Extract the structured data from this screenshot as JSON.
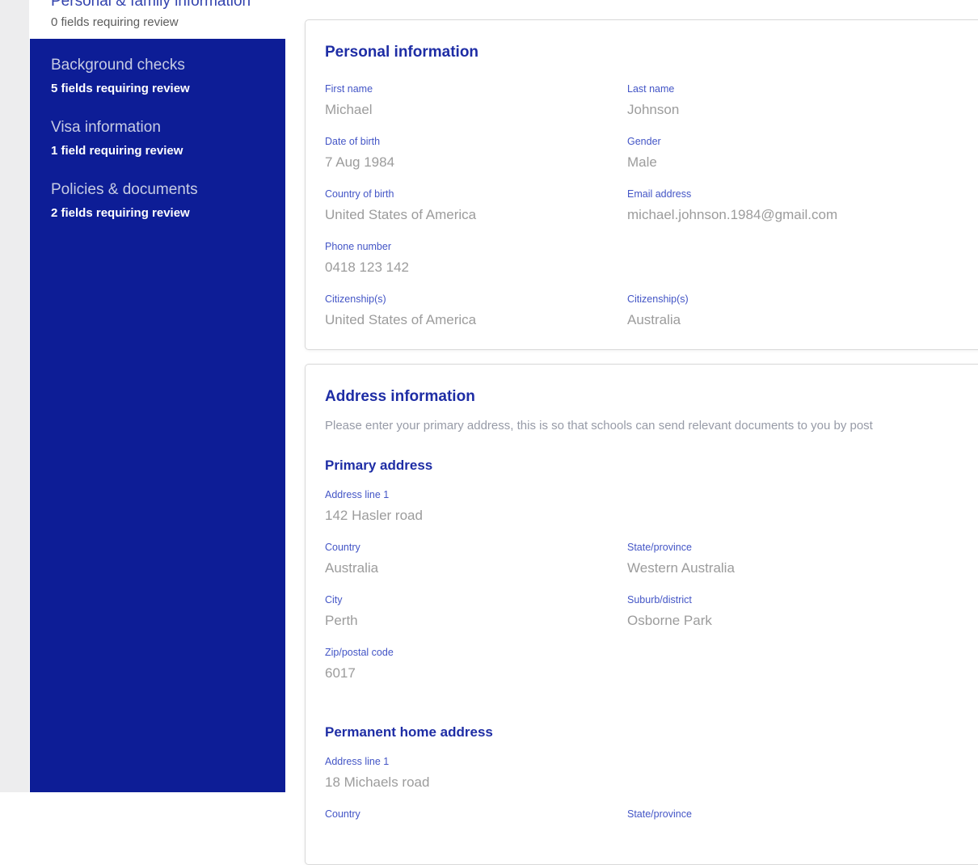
{
  "colors": {
    "sidebar_bg": "#0d1d96",
    "accent_title": "#1e2da5",
    "accent_label": "#4355c6",
    "sidebar_heading": "#c7cce3",
    "value_gray": "#9c9c9c",
    "gutter_gray": "#ededee"
  },
  "sidebar": {
    "top_item": {
      "label": "Personal & family information",
      "status": "0 fields requiring review"
    },
    "items": [
      {
        "label": "Background checks",
        "status": "5 fields requiring review"
      },
      {
        "label": "Visa information",
        "status": "1 field requiring review"
      },
      {
        "label": "Policies & documents",
        "status": "2 fields requiring review"
      }
    ]
  },
  "personal_card": {
    "title": "Personal information",
    "fields": [
      {
        "label": "First name",
        "value": "Michael"
      },
      {
        "label": "Last name",
        "value": "Johnson"
      },
      {
        "label": "Date of birth",
        "value": "7 Aug 1984"
      },
      {
        "label": "Gender",
        "value": "Male"
      },
      {
        "label": "Country of birth",
        "value": "United States of America"
      },
      {
        "label": "Email address",
        "value": "michael.johnson.1984@gmail.com"
      },
      {
        "label": "Phone number",
        "value": "0418 123 142"
      },
      {
        "label": "Citizenship(s)",
        "value": "United States of America"
      },
      {
        "label": "Citizenship(s)",
        "value": "Australia"
      }
    ]
  },
  "address_card": {
    "title": "Address information",
    "description": "Please enter your primary address, this is so that schools can send relevant documents to you by post",
    "primary": {
      "heading": "Primary address",
      "fields": [
        {
          "label": "Address line 1",
          "value": "142 Hasler road"
        },
        {
          "label": "Country",
          "value": "Australia"
        },
        {
          "label": "State/province",
          "value": "Western Australia"
        },
        {
          "label": "City",
          "value": "Perth"
        },
        {
          "label": "Suburb/district",
          "value": "Osborne Park"
        },
        {
          "label": "Zip/postal code",
          "value": "6017"
        }
      ]
    },
    "permanent": {
      "heading": "Permanent home address",
      "fields": [
        {
          "label": "Address line 1",
          "value": "18 Michaels road"
        }
      ],
      "next_row": [
        {
          "label": "Country"
        },
        {
          "label": "State/province"
        }
      ]
    }
  }
}
